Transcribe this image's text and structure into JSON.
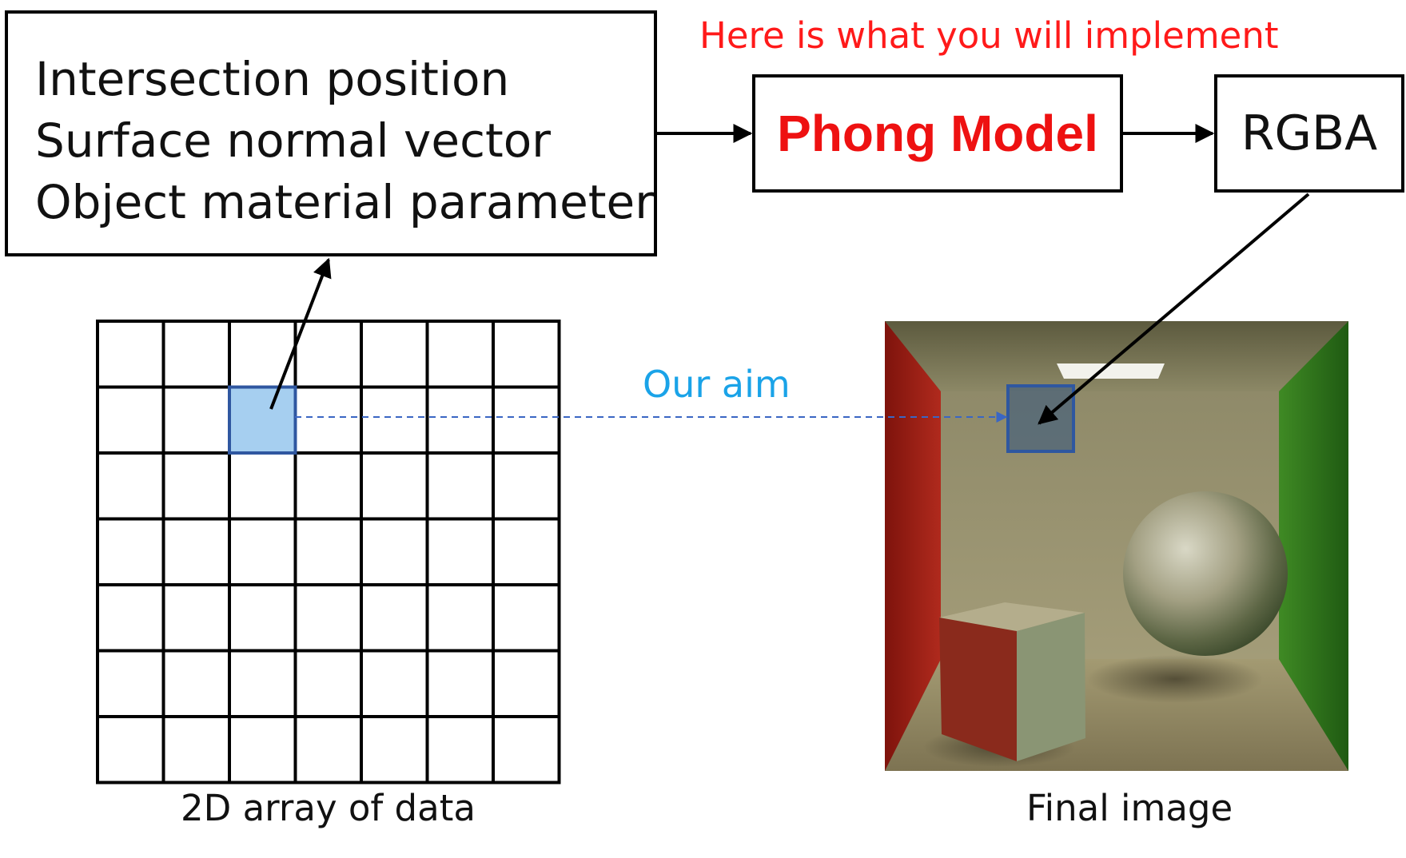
{
  "input_box": {
    "lines": [
      "Intersection position",
      "Surface normal vector",
      "Object material parameter"
    ]
  },
  "implement_note": "Here is what you will implement",
  "phong_box": {
    "label": "Phong Model",
    "color": "#ee1111"
  },
  "rgba_box": {
    "label": "RGBA"
  },
  "aim_label": "Our aim",
  "grid": {
    "rows": 7,
    "cols": 7,
    "highlight_row": 1,
    "highlight_col": 2,
    "highlight_color": "#a6cff0",
    "highlight_border": "#2f57a0",
    "caption": "2D array of data"
  },
  "final_image": {
    "caption": "Final image",
    "highlight_color": "#2f57a0"
  },
  "colors": {
    "note": "#ff1a1a",
    "aim": "#1aa3e8",
    "dashed_arrow": "#3a66c4",
    "red_wall": "#a8211a",
    "green_wall": "#2e7a1c"
  }
}
